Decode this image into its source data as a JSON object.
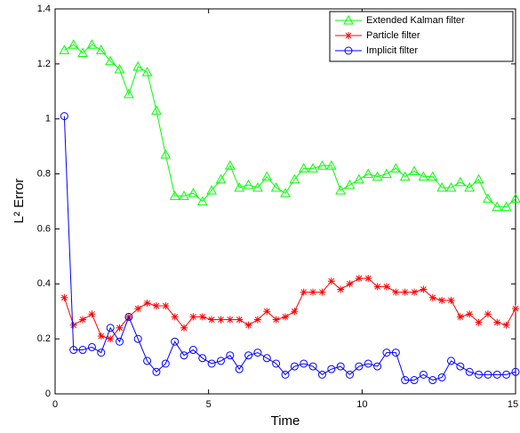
{
  "chart_data": {
    "type": "line",
    "xlabel": "Time",
    "ylabel": "L² Error",
    "x": [
      0.3,
      0.6,
      0.9,
      1.2,
      1.5,
      1.8,
      2.1,
      2.4,
      2.7,
      3.0,
      3.3,
      3.6,
      3.9,
      4.2,
      4.5,
      4.8,
      5.1,
      5.4,
      5.7,
      6.0,
      6.3,
      6.6,
      6.9,
      7.2,
      7.5,
      7.8,
      8.1,
      8.4,
      8.7,
      9.0,
      9.3,
      9.6,
      9.9,
      10.2,
      10.5,
      10.8,
      11.1,
      11.4,
      11.7,
      12.0,
      12.3,
      12.6,
      12.9,
      13.2,
      13.5,
      13.8,
      14.1,
      14.4,
      14.7,
      15.0
    ],
    "series": [
      {
        "name": "Extended Kalman filter",
        "color": "#00ff00",
        "marker": "triangle",
        "values": [
          1.25,
          1.27,
          1.24,
          1.27,
          1.25,
          1.21,
          1.18,
          1.09,
          1.19,
          1.17,
          1.03,
          0.87,
          0.72,
          0.72,
          0.73,
          0.7,
          0.74,
          0.78,
          0.83,
          0.75,
          0.76,
          0.75,
          0.79,
          0.75,
          0.73,
          0.78,
          0.82,
          0.82,
          0.83,
          0.83,
          0.74,
          0.76,
          0.78,
          0.8,
          0.79,
          0.8,
          0.82,
          0.79,
          0.81,
          0.79,
          0.79,
          0.75,
          0.75,
          0.77,
          0.75,
          0.78,
          0.71,
          0.68,
          0.68,
          0.71
        ]
      },
      {
        "name": "Particle filter",
        "color": "#ff0000",
        "marker": "star",
        "values": [
          0.35,
          0.25,
          0.27,
          0.29,
          0.21,
          0.2,
          0.24,
          0.28,
          0.31,
          0.33,
          0.32,
          0.32,
          0.28,
          0.24,
          0.28,
          0.28,
          0.27,
          0.27,
          0.27,
          0.27,
          0.25,
          0.27,
          0.3,
          0.27,
          0.28,
          0.3,
          0.37,
          0.37,
          0.37,
          0.41,
          0.38,
          0.4,
          0.42,
          0.42,
          0.39,
          0.39,
          0.37,
          0.37,
          0.37,
          0.38,
          0.35,
          0.34,
          0.34,
          0.28,
          0.29,
          0.26,
          0.29,
          0.26,
          0.25,
          0.31
        ]
      },
      {
        "name": "Implicit filter",
        "color": "#0000ff",
        "marker": "circle",
        "values": [
          1.01,
          0.16,
          0.16,
          0.17,
          0.15,
          0.24,
          0.19,
          0.28,
          0.2,
          0.12,
          0.08,
          0.11,
          0.19,
          0.14,
          0.16,
          0.13,
          0.11,
          0.12,
          0.14,
          0.09,
          0.14,
          0.15,
          0.13,
          0.11,
          0.07,
          0.1,
          0.11,
          0.1,
          0.07,
          0.09,
          0.1,
          0.07,
          0.1,
          0.11,
          0.1,
          0.15,
          0.15,
          0.05,
          0.05,
          0.07,
          0.05,
          0.06,
          0.12,
          0.1,
          0.08,
          0.07,
          0.07,
          0.07,
          0.07,
          0.08
        ]
      }
    ],
    "xlim": [
      0,
      15
    ],
    "xticks": [
      0,
      5,
      10,
      15
    ],
    "ylim": [
      0,
      1.4
    ],
    "yticks": [
      0,
      0.2,
      0.4,
      0.6,
      0.8,
      1,
      1.2,
      1.4
    ],
    "legend": "northeast",
    "grid": false
  }
}
